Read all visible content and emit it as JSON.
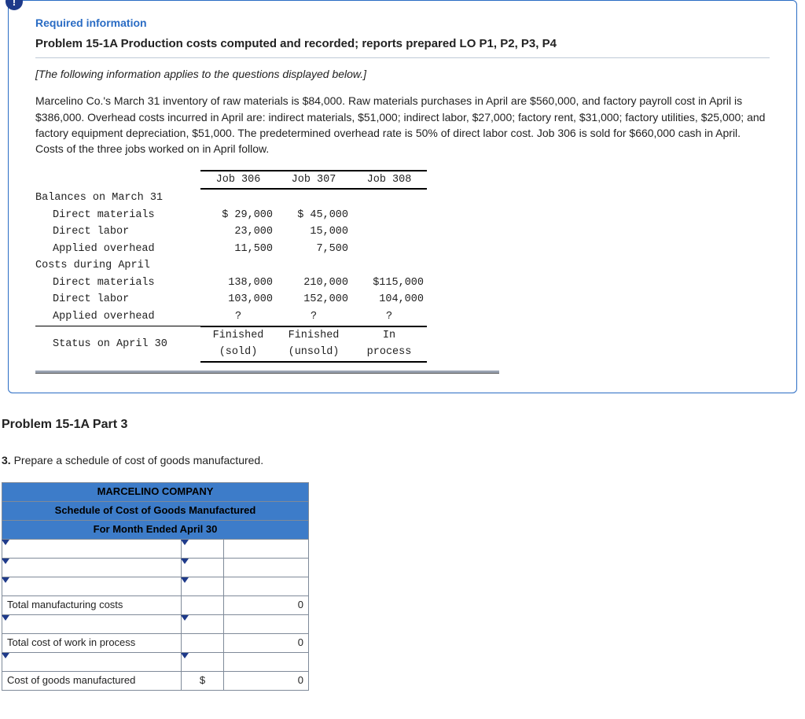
{
  "badge_char": "!",
  "required_heading": "Required information",
  "problem_title": "Problem 15-1A Production costs computed and recorded; reports prepared LO P1, P2, P3, P4",
  "italic_note": "[The following information applies to the questions displayed below.]",
  "body_text": "Marcelino Co.'s March 31 inventory of raw materials is $84,000. Raw materials purchases in April are $560,000, and factory payroll cost in April is $386,000. Overhead costs incurred in April are: indirect materials, $51,000; indirect labor, $27,000; factory rent, $31,000; factory utilities, $25,000; and factory equipment depreciation, $51,000. The predetermined overhead rate is 50% of direct labor cost. Job 306 is sold for $660,000 cash in April. Costs of the three jobs worked on in April follow.",
  "job_table": {
    "columns": [
      "Job 306",
      "Job 307",
      "Job 308"
    ],
    "section1_header": "Balances on March 31",
    "section1_rows": [
      {
        "label": "Direct materials",
        "vals": [
          "$ 29,000",
          "$ 45,000",
          ""
        ]
      },
      {
        "label": "Direct labor",
        "vals": [
          "23,000",
          "15,000",
          ""
        ]
      },
      {
        "label": "Applied overhead",
        "vals": [
          "11,500",
          "7,500",
          ""
        ]
      }
    ],
    "section2_header": "Costs during April",
    "section2_rows": [
      {
        "label": "Direct materials",
        "vals": [
          "138,000",
          "210,000",
          "$115,000"
        ]
      },
      {
        "label": "Direct labor",
        "vals": [
          "103,000",
          "152,000",
          "104,000"
        ]
      },
      {
        "label": "Applied overhead",
        "vals": [
          "?",
          "?",
          "?"
        ]
      }
    ],
    "status_label": "Status on April 30",
    "status_row1": [
      "Finished",
      "Finished",
      "In"
    ],
    "status_row2": [
      "(sold)",
      "(unsold)",
      "process"
    ]
  },
  "part_title": "Problem 15-1A Part 3",
  "instruction_num": "3.",
  "instruction_text": " Prepare a schedule of cost of goods manufactured.",
  "schedule": {
    "header_lines": [
      "MARCELINO COMPANY",
      "Schedule of Cost of Goods Manufactured",
      "For Month Ended April 30"
    ],
    "rows": [
      {
        "label": "",
        "sym": "",
        "val": "",
        "dropdowns": true
      },
      {
        "label": "",
        "sym": "",
        "val": "",
        "dropdowns": true
      },
      {
        "label": "",
        "sym": "",
        "val": "",
        "dropdowns": true
      },
      {
        "label": "Total manufacturing costs",
        "sym": "",
        "val": "0",
        "dropdowns": false
      },
      {
        "label": "",
        "sym": "",
        "val": "",
        "dropdowns": true
      },
      {
        "label": "Total cost of work in process",
        "sym": "",
        "val": "0",
        "dropdowns": false
      },
      {
        "label": "",
        "sym": "",
        "val": "",
        "dropdowns": true
      },
      {
        "label": "Cost of goods manufactured",
        "sym": "$",
        "val": "0",
        "dropdowns": false
      }
    ]
  },
  "colors": {
    "box_border": "#2a6cc4",
    "header_blue": "#3d7cc9",
    "badge_bg": "#1e3a8a",
    "rule_gray": "#9aa3b2"
  }
}
